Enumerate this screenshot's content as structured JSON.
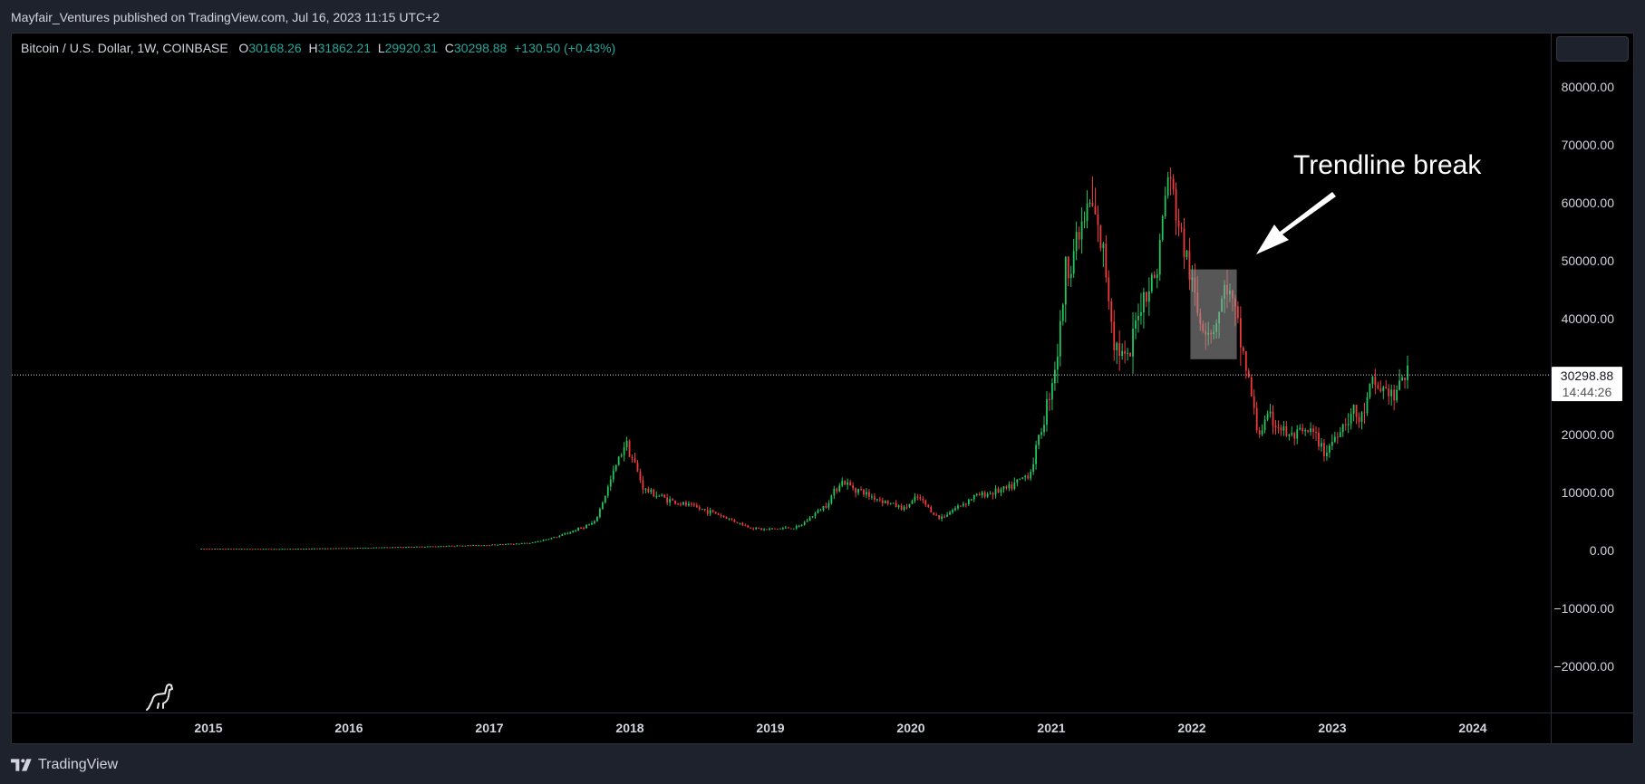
{
  "header": {
    "published_by": "Mayfair_Ventures published on TradingView.com, Jul 16, 2023 11:15 UTC+2"
  },
  "legend": {
    "symbol": "Bitcoin / U.S. Dollar, 1W, COINBASE",
    "open_label": "O",
    "open_value": "30168.26",
    "high_label": "H",
    "high_value": "31862.21",
    "low_label": "L",
    "low_value": "29920.31",
    "close_label": "C",
    "close_value": "30298.88",
    "change": "+130.50 (+0.43%)"
  },
  "price_tag": {
    "price": "30298.88",
    "countdown": "14:44:26"
  },
  "annotation": {
    "text": "Trendline break"
  },
  "footer": {
    "brand": "TradingView"
  },
  "colors": {
    "up": "#26a69a",
    "up_bright": "#22c55e",
    "down": "#ef3b3b",
    "background": "#000000",
    "frame": "#1e222d",
    "text": "#d1d4dc"
  },
  "chart_data": {
    "type": "candlestick",
    "symbol": "Bitcoin / U.S. Dollar",
    "interval": "1W",
    "exchange": "COINBASE",
    "y_ticks": [
      80000,
      70000,
      60000,
      50000,
      40000,
      30000,
      20000,
      10000,
      0,
      -10000,
      -20000
    ],
    "y_tick_labels": [
      "80000.00",
      "70000.00",
      "60000.00",
      "50000.00",
      "40000.00",
      "",
      "20000.00",
      "10000.00",
      "0.00",
      "−10000.00",
      "−20000.00"
    ],
    "x_ticks": [
      "2015",
      "2016",
      "2017",
      "2018",
      "2019",
      "2020",
      "2021",
      "2022",
      "2023",
      "2024"
    ],
    "ylim": [
      -28000,
      88000
    ],
    "last_price": 30298.88,
    "price_path": [
      [
        2014.95,
        300
      ],
      [
        2015.5,
        260
      ],
      [
        2016.0,
        400
      ],
      [
        2016.5,
        650
      ],
      [
        2017.0,
        950
      ],
      [
        2017.3,
        1300
      ],
      [
        2017.5,
        2500
      ],
      [
        2017.75,
        4800
      ],
      [
        2017.97,
        19000
      ],
      [
        2018.1,
        10500
      ],
      [
        2018.3,
        8500
      ],
      [
        2018.6,
        6500
      ],
      [
        2018.85,
        4000
      ],
      [
        2018.95,
        3600
      ],
      [
        2019.2,
        4000
      ],
      [
        2019.4,
        8000
      ],
      [
        2019.5,
        12000
      ],
      [
        2019.7,
        9500
      ],
      [
        2019.95,
        7200
      ],
      [
        2020.05,
        9200
      ],
      [
        2020.2,
        5500
      ],
      [
        2020.45,
        9300
      ],
      [
        2020.7,
        10700
      ],
      [
        2020.85,
        13500
      ],
      [
        2020.95,
        23000
      ],
      [
        2021.05,
        35000
      ],
      [
        2021.1,
        48000
      ],
      [
        2021.28,
        60000
      ],
      [
        2021.38,
        50000
      ],
      [
        2021.45,
        36000
      ],
      [
        2021.55,
        32000
      ],
      [
        2021.62,
        42000
      ],
      [
        2021.7,
        46000
      ],
      [
        2021.75,
        48000
      ],
      [
        2021.83,
        65000
      ],
      [
        2021.9,
        57000
      ],
      [
        2022.0,
        46000
      ],
      [
        2022.05,
        40000
      ],
      [
        2022.15,
        38000
      ],
      [
        2022.25,
        46000
      ],
      [
        2022.33,
        38000
      ],
      [
        2022.4,
        30000
      ],
      [
        2022.47,
        20000
      ],
      [
        2022.55,
        23000
      ],
      [
        2022.7,
        19500
      ],
      [
        2022.85,
        20500
      ],
      [
        2022.95,
        16800
      ],
      [
        2023.05,
        21000
      ],
      [
        2023.15,
        24000
      ],
      [
        2023.2,
        22000
      ],
      [
        2023.28,
        28500
      ],
      [
        2023.4,
        27500
      ],
      [
        2023.45,
        26000
      ],
      [
        2023.5,
        30500
      ],
      [
        2023.54,
        30298.88
      ]
    ],
    "highlight_box": {
      "x": [
        2021.99,
        2022.32
      ],
      "y": [
        33000,
        48500
      ]
    }
  }
}
